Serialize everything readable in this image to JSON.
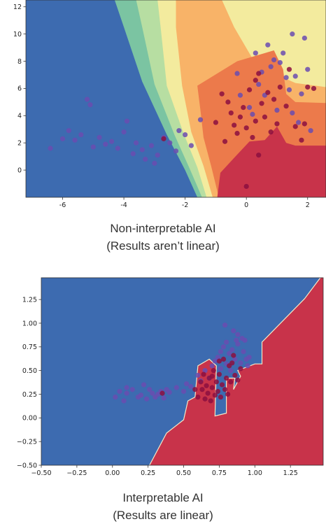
{
  "captions": [
    {
      "line1": "Non-interpretable AI",
      "line2": "(Results aren’t linear)"
    },
    {
      "line1": "Interpretable AI",
      "line2": "(Results are linear)"
    }
  ],
  "colors": {
    "blue": "#3d6bb0",
    "red": "#c8334a",
    "orange": "#ec7a4b",
    "light_orange": "#f8b368",
    "pale_yellow": "#f3eb9e",
    "light_green": "#b7dea2",
    "green": "#7bc4a2",
    "point_red": "#8c0f3f",
    "point_purple": "#6a4cb0"
  },
  "chart_data": [
    {
      "type": "scatter",
      "title": "",
      "xlabel": "",
      "ylabel": "",
      "xlim": [
        -7.2,
        2.6
      ],
      "ylim": [
        -2.0,
        12.5
      ],
      "xticks": [
        "-6",
        "-4",
        "-2",
        "0",
        "2"
      ],
      "yticks": [
        "0",
        "2",
        "4",
        "6",
        "8",
        "10",
        "12"
      ],
      "background": "contour decision regions (blue, red, orange, yellow, green bands)",
      "series": [
        {
          "color": "purple",
          "points": [
            [
              -6.4,
              1.6
            ],
            [
              -6.0,
              2.3
            ],
            [
              -5.8,
              2.9
            ],
            [
              -5.6,
              2.2
            ],
            [
              -5.4,
              2.6
            ],
            [
              -5.2,
              5.2
            ],
            [
              -5.1,
              4.8
            ],
            [
              -5.0,
              1.7
            ],
            [
              -4.8,
              2.4
            ],
            [
              -4.6,
              1.9
            ],
            [
              -4.4,
              2.1
            ],
            [
              -4.2,
              1.6
            ],
            [
              -4.0,
              2.8
            ],
            [
              -3.9,
              3.6
            ],
            [
              -3.7,
              1.2
            ],
            [
              -3.6,
              2.0
            ],
            [
              -3.4,
              1.5
            ],
            [
              -3.3,
              0.8
            ],
            [
              -3.1,
              1.8
            ],
            [
              -3.0,
              0.5
            ],
            [
              -2.9,
              1.1
            ],
            [
              -2.7,
              2.4
            ],
            [
              -2.5,
              2.0
            ],
            [
              -2.3,
              1.4
            ],
            [
              -2.2,
              2.9
            ],
            [
              -2.0,
              2.6
            ],
            [
              -1.8,
              1.8
            ],
            [
              -1.5,
              3.7
            ],
            [
              -0.2,
              5.5
            ],
            [
              0.1,
              4.6
            ],
            [
              0.2,
              4.1
            ],
            [
              0.4,
              6.3
            ],
            [
              0.5,
              7.2
            ],
            [
              0.6,
              5.5
            ],
            [
              0.8,
              7.6
            ],
            [
              0.9,
              8.1
            ],
            [
              1.0,
              4.4
            ],
            [
              1.1,
              7.9
            ],
            [
              1.2,
              8.6
            ],
            [
              1.3,
              6.8
            ],
            [
              1.4,
              5.9
            ],
            [
              1.5,
              4.2
            ],
            [
              1.6,
              6.9
            ],
            [
              1.7,
              3.5
            ],
            [
              1.8,
              5.6
            ],
            [
              1.9,
              9.7
            ],
            [
              2.0,
              7.4
            ],
            [
              2.1,
              2.9
            ],
            [
              0.3,
              8.6
            ],
            [
              0.7,
              9.2
            ],
            [
              1.5,
              10.0
            ],
            [
              -0.3,
              7.1
            ]
          ]
        },
        {
          "color": "red",
          "points": [
            [
              -2.7,
              2.3
            ],
            [
              -0.8,
              5.6
            ],
            [
              -0.6,
              5.0
            ],
            [
              -0.5,
              4.2
            ],
            [
              -0.4,
              3.3
            ],
            [
              -0.3,
              2.7
            ],
            [
              -0.2,
              3.9
            ],
            [
              -0.1,
              4.6
            ],
            [
              0.0,
              3.1
            ],
            [
              0.1,
              5.9
            ],
            [
              0.2,
              2.4
            ],
            [
              0.3,
              3.6
            ],
            [
              0.3,
              6.6
            ],
            [
              0.5,
              4.9
            ],
            [
              0.6,
              3.9
            ],
            [
              0.8,
              2.8
            ],
            [
              0.9,
              5.2
            ],
            [
              1.0,
              3.4
            ],
            [
              1.1,
              6.1
            ],
            [
              1.3,
              4.7
            ],
            [
              1.6,
              3.2
            ],
            [
              1.8,
              2.2
            ],
            [
              2.0,
              6.1
            ],
            [
              2.2,
              6.0
            ],
            [
              0.0,
              -1.2
            ],
            [
              0.4,
              1.1
            ],
            [
              0.4,
              7.1
            ],
            [
              -1.0,
              3.5
            ],
            [
              -0.7,
              2.1
            ],
            [
              0.7,
              5.7
            ],
            [
              1.4,
              7.4
            ],
            [
              1.9,
              3.4
            ]
          ]
        }
      ]
    },
    {
      "type": "scatter",
      "title": "",
      "xlabel": "",
      "ylabel": "",
      "xlim": [
        -0.5,
        1.48
      ],
      "ylim": [
        -0.5,
        1.48
      ],
      "xticks": [
        "−0.50",
        "−0.25",
        "0.00",
        "0.25",
        "0.50",
        "0.75",
        "1.00",
        "1.25"
      ],
      "yticks": [
        "−0.50",
        "−0.25",
        "0.00",
        "0.25",
        "0.50",
        "0.75",
        "1.00",
        "1.25"
      ],
      "background": "two decision regions separated by a near-linear boundary (blue upper-left, red lower-right)",
      "series": [
        {
          "color": "purple",
          "points": [
            [
              0.02,
              0.22
            ],
            [
              0.05,
              0.28
            ],
            [
              0.08,
              0.18
            ],
            [
              0.1,
              0.26
            ],
            [
              0.14,
              0.3
            ],
            [
              0.18,
              0.22
            ],
            [
              0.2,
              0.24
            ],
            [
              0.22,
              0.35
            ],
            [
              0.24,
              0.2
            ],
            [
              0.26,
              0.3
            ],
            [
              0.28,
              0.26
            ],
            [
              0.3,
              0.22
            ],
            [
              0.32,
              0.25
            ],
            [
              0.34,
              0.28
            ],
            [
              0.36,
              0.21
            ],
            [
              0.38,
              0.3
            ],
            [
              0.4,
              0.27
            ],
            [
              0.45,
              0.32
            ],
            [
              0.5,
              0.28
            ],
            [
              0.52,
              0.36
            ],
            [
              0.55,
              0.33
            ],
            [
              0.6,
              0.45
            ],
            [
              0.62,
              0.39
            ],
            [
              0.65,
              0.5
            ],
            [
              0.68,
              0.42
            ],
            [
              0.7,
              0.55
            ],
            [
              0.72,
              0.6
            ],
            [
              0.74,
              0.64
            ],
            [
              0.76,
              0.7
            ],
            [
              0.78,
              0.75
            ],
            [
              0.8,
              0.8
            ],
            [
              0.82,
              0.68
            ],
            [
              0.84,
              0.72
            ],
            [
              0.86,
              0.62
            ],
            [
              0.88,
              0.78
            ],
            [
              0.9,
              0.58
            ],
            [
              0.92,
              0.7
            ],
            [
              0.94,
              0.62
            ],
            [
              0.79,
              0.98
            ],
            [
              0.85,
              0.92
            ],
            [
              0.88,
              0.88
            ],
            [
              0.91,
              0.84
            ],
            [
              0.8,
              0.57
            ],
            [
              0.76,
              0.52
            ],
            [
              0.95,
              0.55
            ],
            [
              0.83,
              0.5
            ],
            [
              0.87,
              0.82
            ],
            [
              0.93,
              0.82
            ],
            [
              0.96,
              0.64
            ],
            [
              0.1,
              0.32
            ]
          ]
        },
        {
          "color": "red",
          "points": [
            [
              0.35,
              0.26
            ],
            [
              0.58,
              0.3
            ],
            [
              0.6,
              0.22
            ],
            [
              0.62,
              0.38
            ],
            [
              0.63,
              0.3
            ],
            [
              0.64,
              0.46
            ],
            [
              0.65,
              0.2
            ],
            [
              0.66,
              0.34
            ],
            [
              0.67,
              0.26
            ],
            [
              0.68,
              0.42
            ],
            [
              0.69,
              0.18
            ],
            [
              0.7,
              0.32
            ],
            [
              0.71,
              0.5
            ],
            [
              0.72,
              0.24
            ],
            [
              0.73,
              0.38
            ],
            [
              0.74,
              0.28
            ],
            [
              0.75,
              0.46
            ],
            [
              0.76,
              0.22
            ],
            [
              0.77,
              0.35
            ],
            [
              0.78,
              0.62
            ],
            [
              0.79,
              0.3
            ],
            [
              0.8,
              0.42
            ],
            [
              0.81,
              0.25
            ],
            [
              0.82,
              0.55
            ],
            [
              0.83,
              0.38
            ],
            [
              0.84,
              0.58
            ],
            [
              0.86,
              0.45
            ],
            [
              0.88,
              0.4
            ],
            [
              0.9,
              0.52
            ],
            [
              0.75,
              0.6
            ],
            [
              0.7,
              0.44
            ],
            [
              0.85,
              0.66
            ]
          ]
        }
      ]
    }
  ]
}
